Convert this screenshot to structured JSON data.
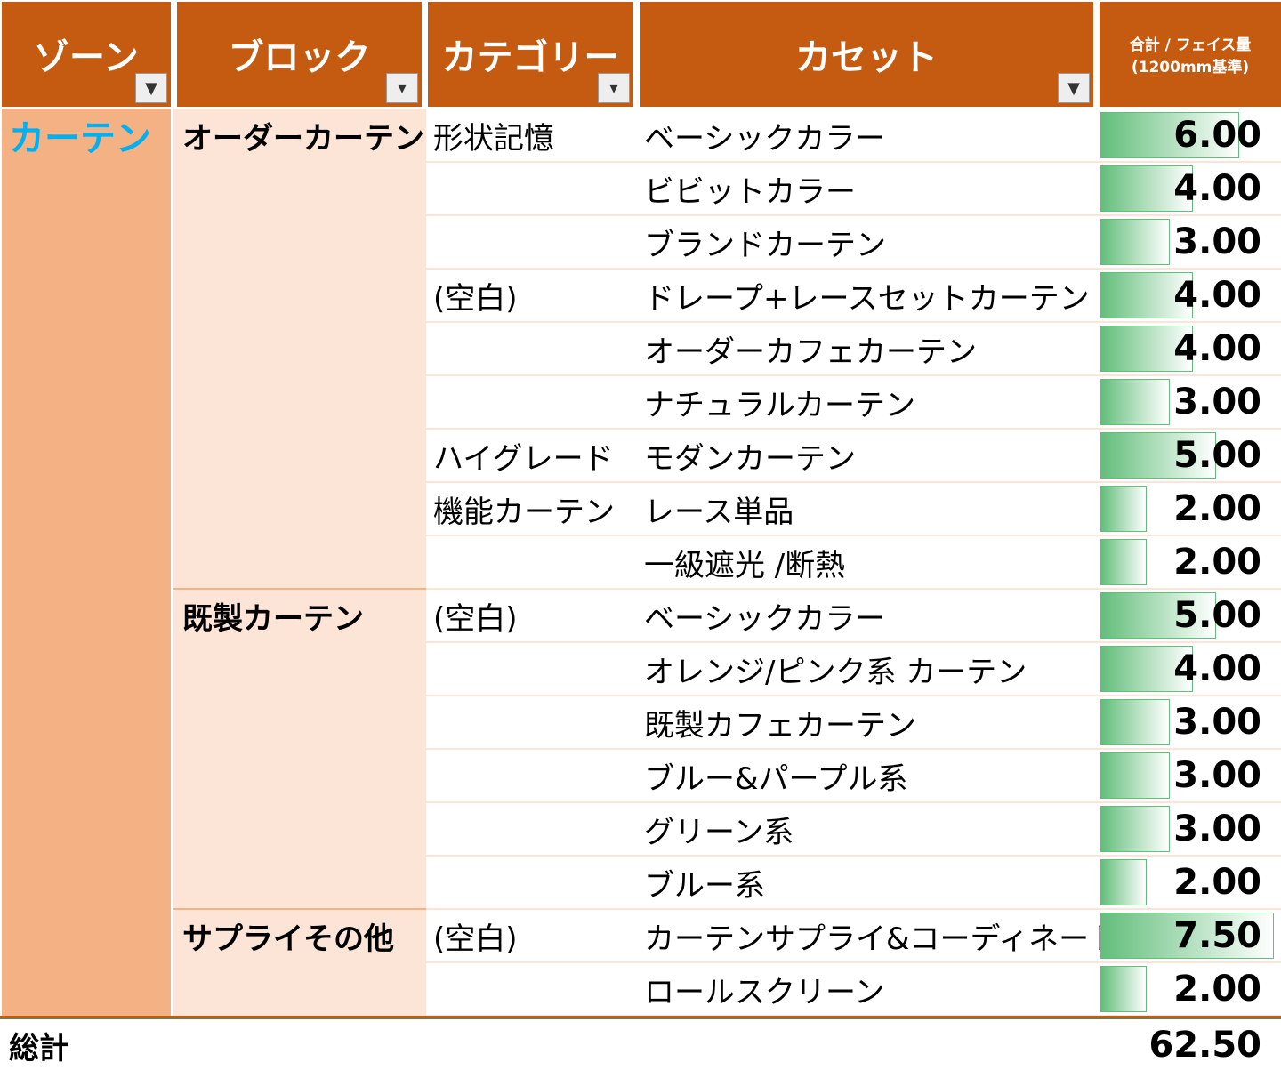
{
  "header": {
    "zone": "ゾーン",
    "block": "ブロック",
    "category": "カテゴリー",
    "cassette": "カセット",
    "value_line1": "合計 / フェイス量",
    "value_line2": "(1200mm基準)"
  },
  "zone": {
    "label": "カーテン",
    "blocks": [
      {
        "label": "オーダーカーテン",
        "categories": [
          {
            "label": "形状記憶",
            "items": [
              {
                "name": "ベーシックカラー",
                "value": {
                  "value": 6,
                  "label": "6.00"
                }
              },
              {
                "name": "ビビットカラー",
                "value": {
                  "value": 4,
                  "label": "4.00"
                }
              },
              {
                "name": "ブランドカーテン",
                "value": {
                  "value": 3,
                  "label": "3.00"
                }
              }
            ]
          },
          {
            "label": "(空白)",
            "items": [
              {
                "name": "ドレープ+レースセットカーテン",
                "value": {
                  "value": 4,
                  "label": "4.00"
                }
              },
              {
                "name": "オーダーカフェカーテン",
                "value": {
                  "value": 4,
                  "label": "4.00"
                }
              },
              {
                "name": "ナチュラルカーテン",
                "value": {
                  "value": 3,
                  "label": "3.00"
                }
              }
            ]
          },
          {
            "label": "ハイグレード",
            "items": [
              {
                "name": "モダンカーテン",
                "value": {
                  "value": 5,
                  "label": "5.00"
                }
              }
            ]
          },
          {
            "label": "機能カーテン",
            "items": [
              {
                "name": "レース単品",
                "value": {
                  "value": 2,
                  "label": "2.00"
                }
              },
              {
                "name": "一級遮光 /断熱",
                "value": {
                  "value": 2,
                  "label": "2.00"
                }
              }
            ]
          }
        ]
      },
      {
        "label": "既製カーテン",
        "categories": [
          {
            "label": "(空白)",
            "items": [
              {
                "name": "ベーシックカラー",
                "value": {
                  "value": 5,
                  "label": "5.00"
                }
              },
              {
                "name": "オレンジ/ピンク系 カーテン",
                "value": {
                  "value": 4,
                  "label": "4.00"
                }
              },
              {
                "name": "既製カフェカーテン",
                "value": {
                  "value": 3,
                  "label": "3.00"
                }
              },
              {
                "name": "ブルー&パープル系",
                "value": {
                  "value": 3,
                  "label": "3.00"
                }
              },
              {
                "name": "グリーン系",
                "value": {
                  "value": 3,
                  "label": "3.00"
                }
              },
              {
                "name": "ブルー系",
                "value": {
                  "value": 2,
                  "label": "2.00"
                }
              }
            ]
          }
        ]
      },
      {
        "label": "サプライその他",
        "categories": [
          {
            "label": "(空白)",
            "items": [
              {
                "name": "カーテンサプライ&コーディネート",
                "value": {
                  "value": 7.5,
                  "label": "7.50"
                }
              },
              {
                "name": "ロールスクリーン",
                "value": {
                  "value": 2,
                  "label": "2.00"
                }
              }
            ]
          }
        ]
      }
    ]
  },
  "total": {
    "label": "総計",
    "value": {
      "value": 62.5,
      "label": "62.50"
    }
  }
}
